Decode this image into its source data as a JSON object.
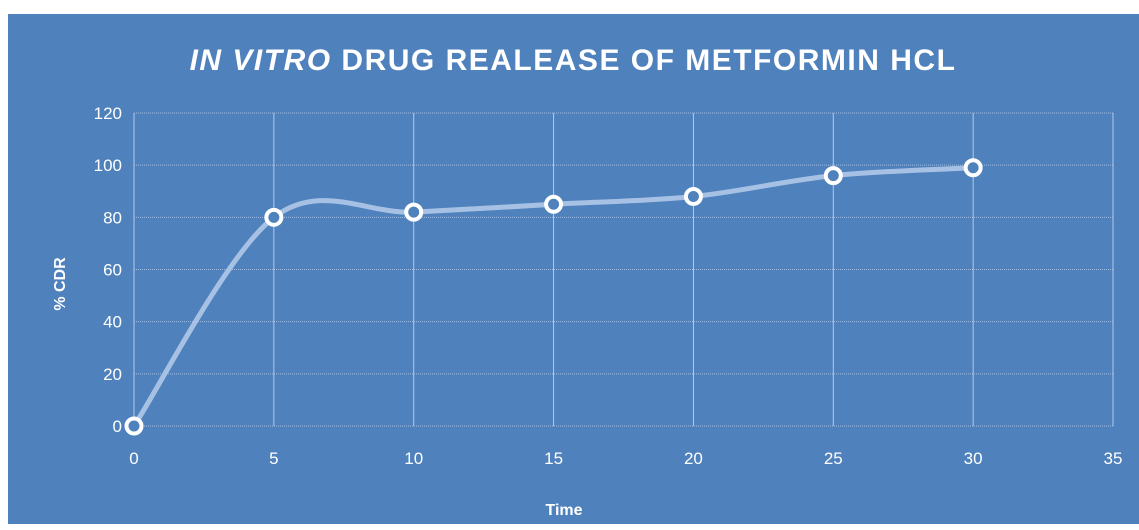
{
  "chart_data": {
    "type": "scatter",
    "title_italic": "IN VITRO",
    "title_rest": " DRUG REALEASE OF METFORMIN HCL",
    "xlabel": "Time",
    "ylabel": "% CDR",
    "xlim": [
      0,
      35
    ],
    "ylim": [
      0,
      120
    ],
    "x_ticks": [
      "0",
      "5",
      "10",
      "15",
      "20",
      "25",
      "30",
      "35"
    ],
    "y_ticks": [
      "0",
      "20",
      "40",
      "60",
      "80",
      "100",
      "120"
    ],
    "grid": true,
    "smoothed_line": true,
    "series": [
      {
        "x": [
          0,
          5,
          10,
          15,
          20,
          25,
          30
        ],
        "y": [
          0,
          80,
          82,
          85,
          88,
          96,
          99
        ]
      }
    ],
    "colors": {
      "background": "#4f81bd",
      "line": "#a6c1e4",
      "marker_fill": "#4f81bd",
      "marker_edge": "#ffffff",
      "text": "#ffffff"
    }
  }
}
